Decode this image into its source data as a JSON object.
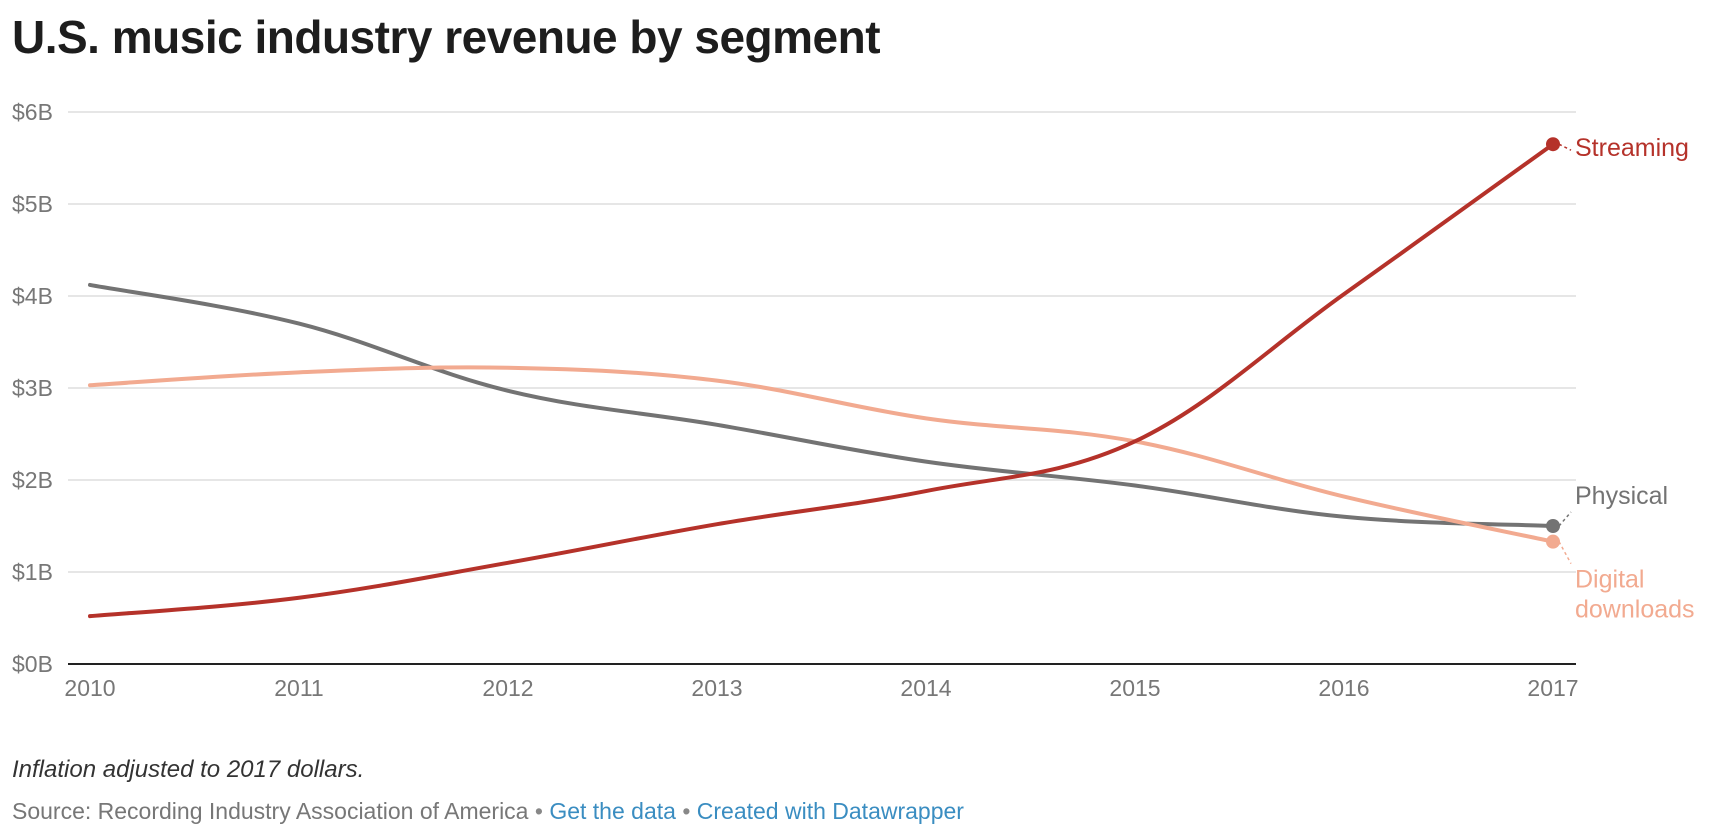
{
  "title": "U.S. music industry revenue by segment",
  "note": "Inflation adjusted to 2017 dollars.",
  "source_text": "Source: Recording Industry Association of America",
  "links": {
    "get_data": "Get the data",
    "created_with": "Created with Datawrapper"
  },
  "separator": "•",
  "chart_data": {
    "type": "line",
    "x": [
      2010,
      2011,
      2012,
      2013,
      2014,
      2015,
      2016,
      2017
    ],
    "x_tick_labels": [
      "2010",
      "2011",
      "2012",
      "2013",
      "2014",
      "2015",
      "2016",
      "2017"
    ],
    "y_ticks": [
      0,
      1,
      2,
      3,
      4,
      5,
      6
    ],
    "y_tick_labels": [
      "$0B",
      "$1B",
      "$2B",
      "$3B",
      "$4B",
      "$5B",
      "$6B"
    ],
    "ylim": [
      0,
      6
    ],
    "grid": true,
    "legend": "inline labels at line ends",
    "series": [
      {
        "name": "Streaming",
        "color": "#b5322a",
        "values": [
          0.52,
          0.72,
          1.1,
          1.52,
          1.88,
          2.42,
          4.02,
          5.65
        ]
      },
      {
        "name": "Physical",
        "color": "#737373",
        "values": [
          4.12,
          3.7,
          2.97,
          2.6,
          2.2,
          1.94,
          1.6,
          1.5
        ]
      },
      {
        "name": "Digital downloads",
        "color": "#f2aa90",
        "values": [
          3.03,
          3.17,
          3.22,
          3.08,
          2.67,
          2.42,
          1.82,
          1.33
        ]
      }
    ]
  }
}
